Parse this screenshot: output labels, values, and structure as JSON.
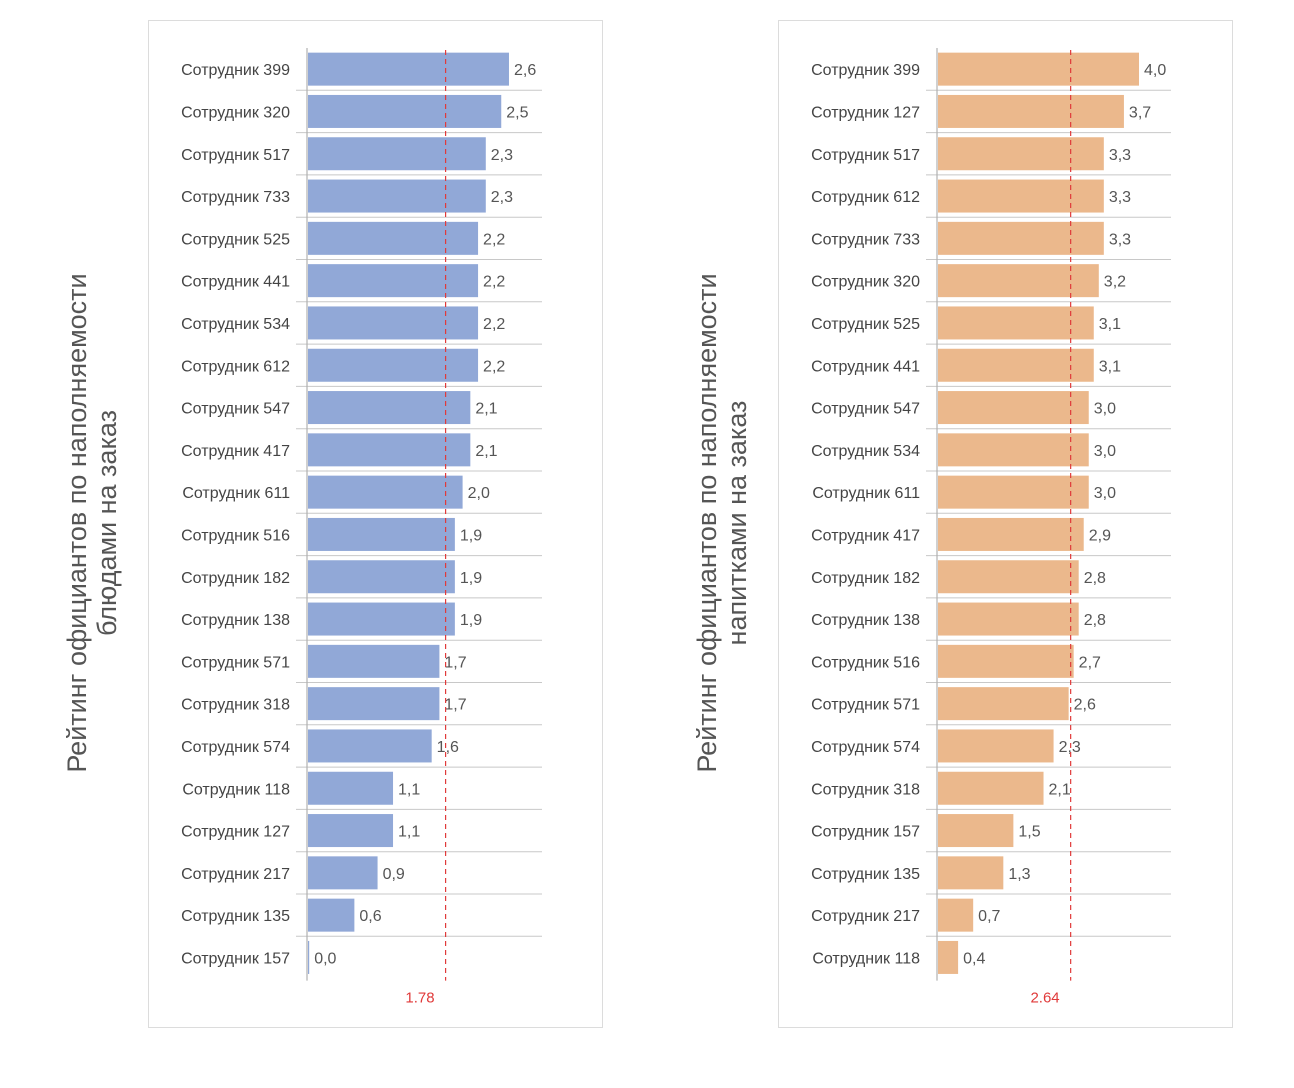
{
  "chart_data": [
    {
      "type": "bar",
      "orientation": "horizontal",
      "title": "",
      "ylabel": "Рейтинг официантов по наполняемости блюдами на заказ",
      "ylabel_lines": [
        "Рейтинг официантов по наполняемости",
        "блюдами на заказ"
      ],
      "xlabel": "",
      "color": "#91a8d7",
      "mean_line": {
        "value": 1.78,
        "label": "1.78",
        "color": "#e03a3a",
        "style": "dashed"
      },
      "xlim": [
        0,
        3.0
      ],
      "grid": "horizontal separators",
      "categories": [
        "Сотрудник 399",
        "Сотрудник 320",
        "Сотрудник 517",
        "Сотрудник 733",
        "Сотрудник 525",
        "Сотрудник 441",
        "Сотрудник 534",
        "Сотрудник 612",
        "Сотрудник 547",
        "Сотрудник 417",
        "Сотрудник 611",
        "Сотрудник 516",
        "Сотрудник 182",
        "Сотрудник 138",
        "Сотрудник 571",
        "Сотрудник 318",
        "Сотрудник 574",
        "Сотрудник 118",
        "Сотрудник 127",
        "Сотрудник 217",
        "Сотрудник 135",
        "Сотрудник 157"
      ],
      "values": [
        2.6,
        2.5,
        2.3,
        2.3,
        2.2,
        2.2,
        2.2,
        2.2,
        2.1,
        2.1,
        2.0,
        1.9,
        1.9,
        1.9,
        1.7,
        1.7,
        1.6,
        1.1,
        1.1,
        0.9,
        0.6,
        0.0
      ],
      "value_labels": [
        "2,6",
        "2,5",
        "2,3",
        "2,3",
        "2,2",
        "2,2",
        "2,2",
        "2,2",
        "2,1",
        "2,1",
        "2,0",
        "1,9",
        "1,9",
        "1,9",
        "1,7",
        "1,7",
        "1,6",
        "1,1",
        "1,1",
        "0,9",
        "0,6",
        "0,0"
      ]
    },
    {
      "type": "bar",
      "orientation": "horizontal",
      "title": "",
      "ylabel": "Рейтинг официантов по наполняемости напитками на заказ",
      "ylabel_lines": [
        "Рейтинг официантов по наполняемости",
        "напитками на заказ"
      ],
      "xlabel": "",
      "color": "#ebb88c",
      "mean_line": {
        "value": 2.64,
        "label": "2.64",
        "color": "#e03a3a",
        "style": "dashed"
      },
      "xlim": [
        0,
        4.6
      ],
      "grid": "horizontal separators",
      "categories": [
        "Сотрудник 399",
        "Сотрудник 127",
        "Сотрудник 517",
        "Сотрудник 612",
        "Сотрудник 733",
        "Сотрудник 320",
        "Сотрудник 525",
        "Сотрудник 441",
        "Сотрудник 547",
        "Сотрудник 534",
        "Сотрудник 611",
        "Сотрудник 417",
        "Сотрудник 182",
        "Сотрудник 138",
        "Сотрудник 516",
        "Сотрудник 571",
        "Сотрудник 574",
        "Сотрудник 318",
        "Сотрудник 157",
        "Сотрудник 135",
        "Сотрудник 217",
        "Сотрудник 118"
      ],
      "values": [
        4.0,
        3.7,
        3.3,
        3.3,
        3.3,
        3.2,
        3.1,
        3.1,
        3.0,
        3.0,
        3.0,
        2.9,
        2.8,
        2.8,
        2.7,
        2.6,
        2.3,
        2.1,
        1.5,
        1.3,
        0.7,
        0.4
      ],
      "value_labels": [
        "4,0",
        "3,7",
        "3,3",
        "3,3",
        "3,3",
        "3,2",
        "3,1",
        "3,1",
        "3,0",
        "3,0",
        "3,0",
        "2,9",
        "2,8",
        "2,8",
        "2,7",
        "2,6",
        "2,3",
        "2,1",
        "1,5",
        "1,3",
        "0,7",
        "0,4"
      ]
    }
  ]
}
